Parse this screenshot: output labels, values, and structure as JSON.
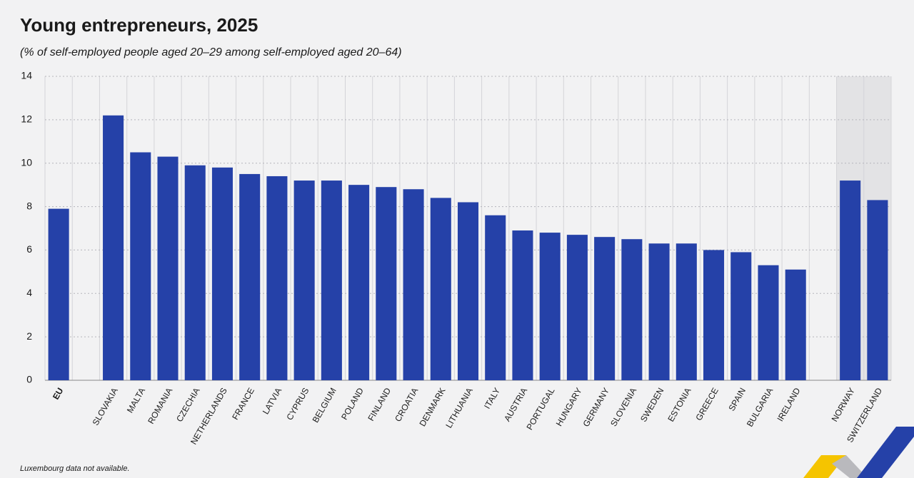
{
  "chart_data": {
    "type": "bar",
    "title": "Young entrepreneurs, 2025",
    "subtitle": "(% of self-employed people aged 20–29 among self-employed aged 20–64)",
    "note": "Luxembourg data not available.",
    "categories": [
      "EU",
      null,
      "SLOVAKIA",
      "MALTA",
      "ROMANIA",
      "CZECHIA",
      "NETHERLANDS",
      "FRANCE",
      "LATVIA",
      "CYPRUS",
      "BELGIUM",
      "POLAND",
      "FINLAND",
      "CROATIA",
      "DENMARK",
      "LITHUANIA",
      "ITALY",
      "AUSTRIA",
      "PORTUGAL",
      "HUNGARY",
      "GERMANY",
      "SLOVENIA",
      "SWEDEN",
      "ESTONIA",
      "GREECE",
      "SPAIN",
      "BULGARIA",
      "IRELAND",
      null,
      "NORWAY",
      "SWITZERLAND"
    ],
    "values": [
      7.9,
      null,
      12.2,
      10.5,
      10.3,
      9.9,
      9.8,
      9.5,
      9.4,
      9.2,
      9.2,
      9.0,
      8.9,
      8.8,
      8.4,
      8.2,
      7.6,
      6.9,
      6.8,
      6.7,
      6.6,
      6.5,
      6.3,
      6.3,
      6.0,
      5.9,
      5.3,
      5.1,
      null,
      9.2,
      8.3
    ],
    "color": "#2541a8",
    "ylim": [
      0,
      14
    ],
    "yticks": [
      0,
      2,
      4,
      6,
      8,
      10,
      12,
      14
    ],
    "grid": true
  }
}
